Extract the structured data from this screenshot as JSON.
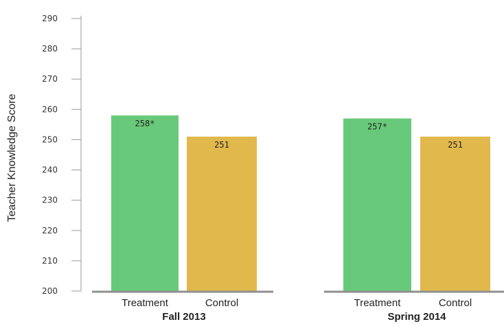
{
  "chart_data": {
    "type": "bar",
    "ylabel": "Teacher Knowledge Score",
    "ylim": [
      200,
      290
    ],
    "yticks": [
      200,
      210,
      220,
      230,
      240,
      250,
      260,
      270,
      280,
      290
    ],
    "grid": false,
    "groups": [
      {
        "name": "Fall 2013",
        "bars": [
          {
            "category": "Treatment",
            "value": 258,
            "label": "258*",
            "color": "#69c97a"
          },
          {
            "category": "Control",
            "value": 251,
            "label": "251",
            "color": "#e1b84c"
          }
        ]
      },
      {
        "name": "Spring 2014",
        "bars": [
          {
            "category": "Treatment",
            "value": 257,
            "label": "257*",
            "color": "#69c97a"
          },
          {
            "category": "Control",
            "value": 251,
            "label": "251",
            "color": "#e1b84c"
          }
        ]
      }
    ]
  }
}
